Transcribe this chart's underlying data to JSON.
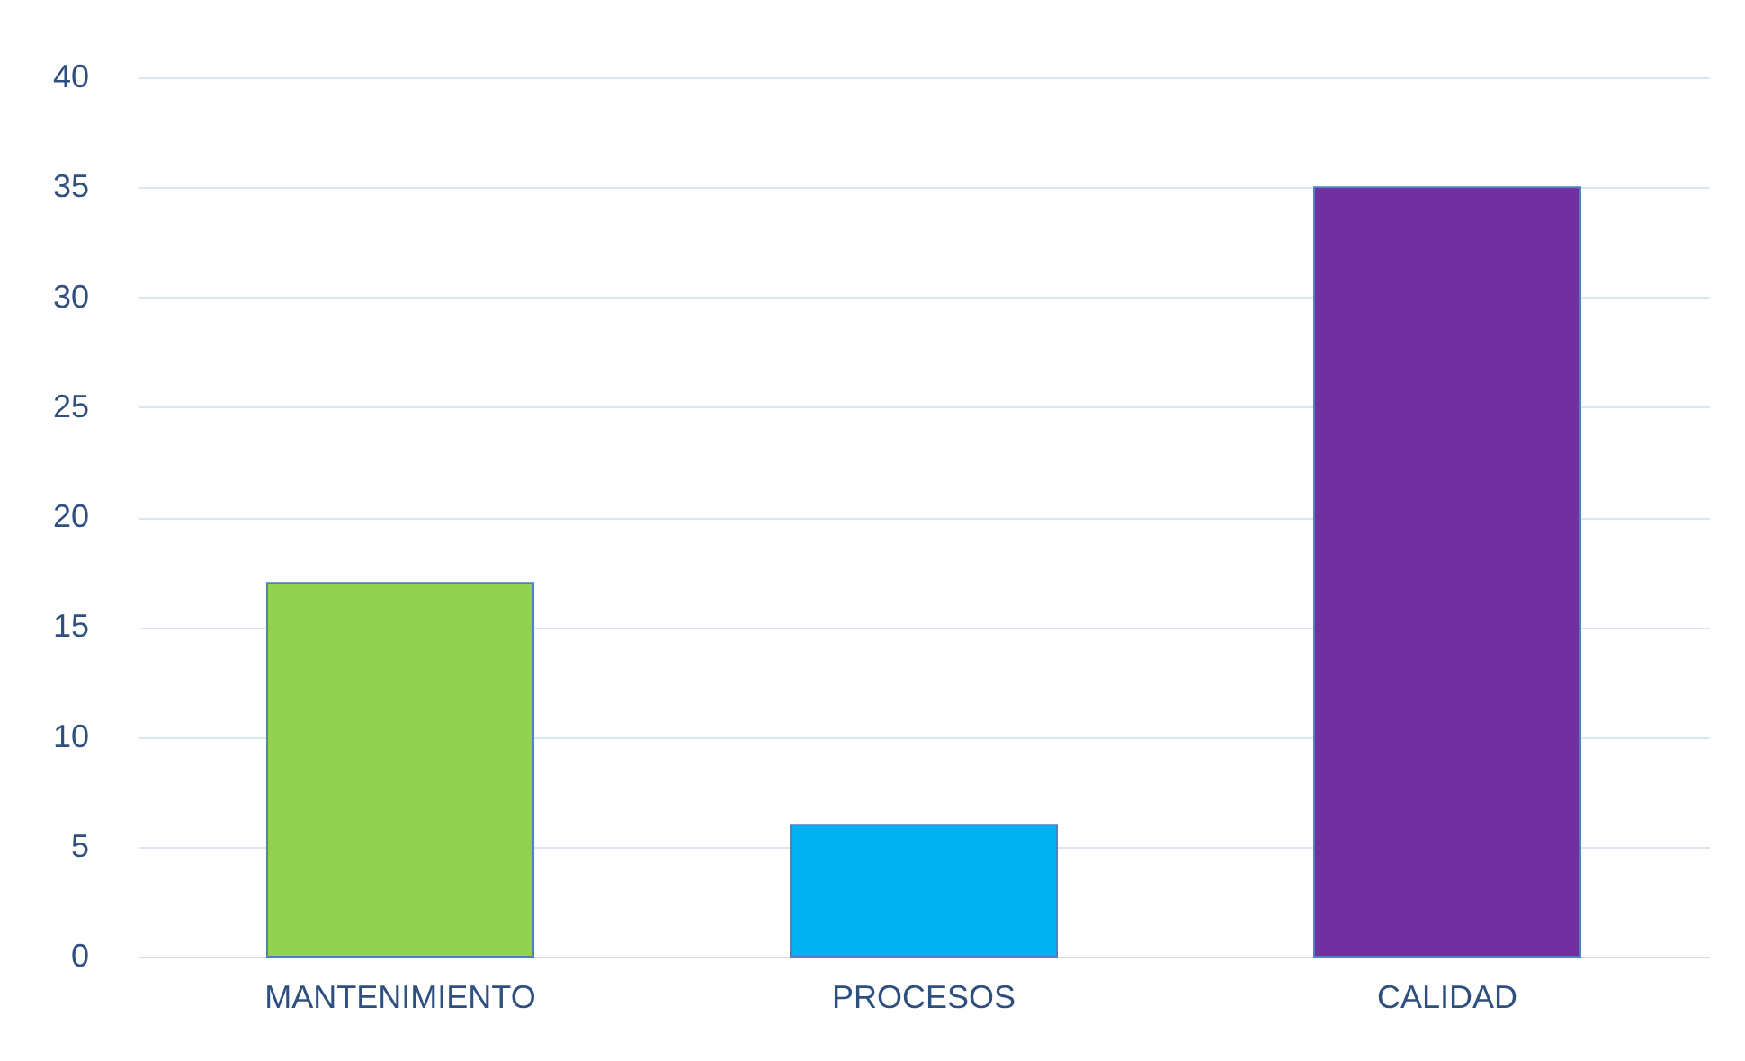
{
  "chart_data": {
    "type": "bar",
    "categories": [
      "MANTENIMIENTO",
      "PROCESOS",
      "CALIDAD"
    ],
    "values": [
      17,
      6,
      35
    ],
    "colors": [
      "#92d050",
      "#00b0f0",
      "#7030a0"
    ],
    "ylim": [
      0,
      40
    ],
    "yticks": [
      0,
      5,
      10,
      15,
      20,
      25,
      30,
      35,
      40
    ],
    "grid": "y"
  }
}
